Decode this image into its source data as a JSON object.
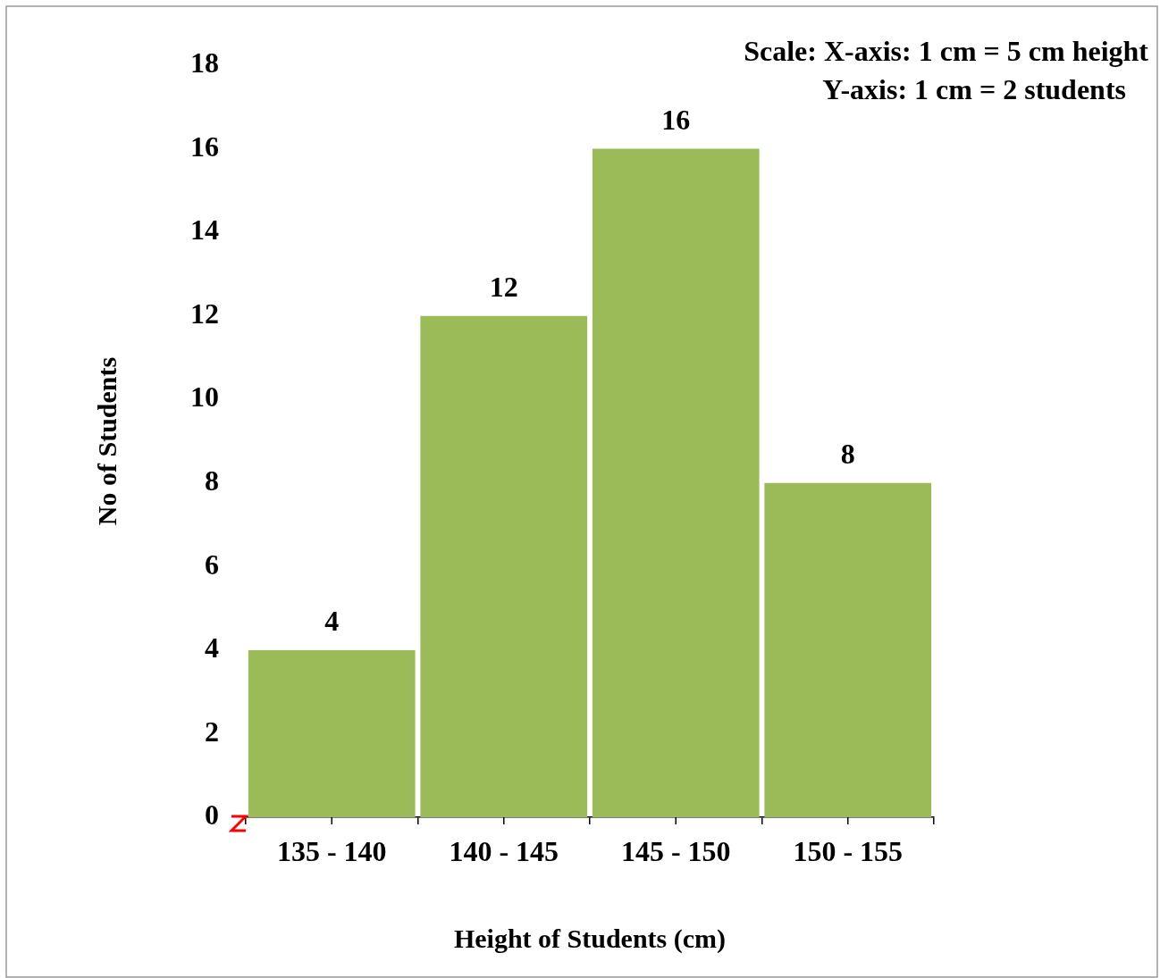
{
  "chart_data": {
    "type": "bar",
    "categories": [
      "135 - 140",
      "140 - 145",
      "145 - 150",
      "150 - 155"
    ],
    "values": [
      4,
      12,
      16,
      8
    ],
    "color": "#9bbb59",
    "data_labels": true,
    "ylim": [
      0,
      18
    ],
    "yticks": [
      0,
      2,
      4,
      6,
      8,
      10,
      12,
      14,
      16,
      18
    ],
    "xlabel": "Height of Students (cm)",
    "ylabel": "No of Students",
    "annotations": [
      "Scale: X-axis: 1 cm = 5 cm height",
      "Y-axis: 1 cm = 2 students"
    ]
  }
}
